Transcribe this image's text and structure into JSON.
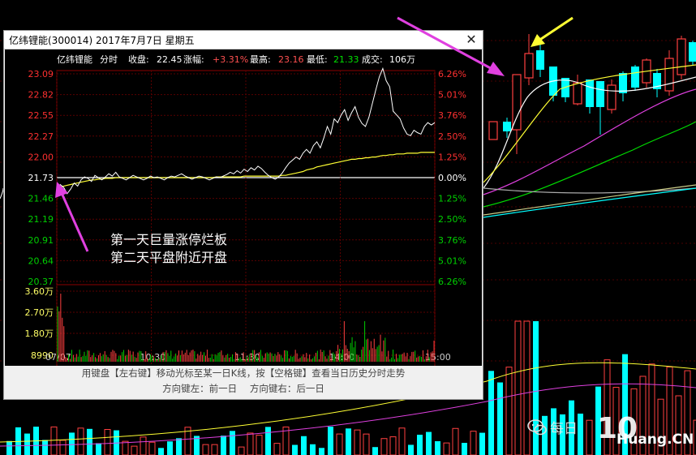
{
  "popup": {
    "title": "亿纬锂能(300014) 2017年7月7日 星期五",
    "close_label": "✕"
  },
  "intraday": {
    "name": "亿纬锂能",
    "mode": "分时",
    "close_label": "收盘:",
    "close_value": "22.45",
    "change_label": "涨幅:",
    "change_value": "+3.31%",
    "high_label": "最高:",
    "high_value": "23.16",
    "low_label": "最低:",
    "low_value": "21.33",
    "volume_label": "成交:",
    "volume_value": "106万"
  },
  "chart_data": {
    "type": "line",
    "price_ticks": [
      "23.09",
      "22.82",
      "22.55",
      "22.27",
      "22.00",
      "21.73",
      "21.46",
      "21.19",
      "20.91",
      "20.64",
      "20.37"
    ],
    "pct_ticks": [
      "6.26%",
      "5.01%",
      "3.76%",
      "2.50%",
      "1.25%",
      "0.00%",
      "1.25%",
      "2.50%",
      "3.76%",
      "5.01%",
      "6.26%"
    ],
    "volume_ticks": [
      "3.60万",
      "2.70万",
      "1.80万",
      "8990"
    ],
    "time_ticks": [
      "07/07",
      "10:30",
      "11:30",
      "14:00",
      "15:00"
    ],
    "ylim": [
      20.37,
      23.09
    ],
    "prev_close": 21.73,
    "price": [
      21.55,
      21.64,
      21.6,
      21.52,
      21.58,
      21.66,
      21.62,
      21.7,
      21.74,
      21.72,
      21.68,
      21.76,
      21.73,
      21.7,
      21.74,
      21.78,
      21.75,
      21.8,
      21.74,
      21.72,
      21.7,
      21.73,
      21.76,
      21.74,
      21.72,
      21.7,
      21.72,
      21.75,
      21.73,
      21.74,
      21.72,
      21.7,
      21.73,
      21.75,
      21.74,
      21.76,
      21.78,
      21.75,
      21.73,
      21.71,
      21.73,
      21.75,
      21.74,
      21.72,
      21.7,
      21.72,
      21.74,
      21.73,
      21.75,
      21.77,
      21.8,
      21.78,
      21.82,
      21.79,
      21.84,
      21.81,
      21.86,
      21.83,
      21.88,
      21.85,
      21.8,
      21.76,
      21.73,
      21.71,
      21.74,
      21.79,
      21.86,
      21.92,
      21.96,
      22.0,
      21.97,
      22.05,
      22.1,
      22.05,
      22.15,
      22.2,
      22.12,
      22.25,
      22.4,
      22.3,
      22.5,
      22.45,
      22.55,
      22.62,
      22.48,
      22.58,
      22.66,
      22.52,
      22.44,
      22.4,
      22.52,
      22.7,
      22.88,
      23.05,
      23.16,
      23.0,
      22.92,
      22.6,
      22.55,
      22.5,
      22.38,
      22.3,
      22.28,
      22.35,
      22.32,
      22.3,
      22.4,
      22.45,
      22.42,
      22.45
    ],
    "avg": [
      21.6,
      21.61,
      21.62,
      21.63,
      21.64,
      21.65,
      21.66,
      21.67,
      21.68,
      21.69,
      21.7,
      21.7,
      21.71,
      21.71,
      21.72,
      21.72,
      21.72,
      21.73,
      21.73,
      21.73,
      21.73,
      21.73,
      21.73,
      21.73,
      21.73,
      21.73,
      21.73,
      21.73,
      21.73,
      21.73,
      21.73,
      21.73,
      21.73,
      21.73,
      21.73,
      21.73,
      21.73,
      21.73,
      21.73,
      21.73,
      21.73,
      21.73,
      21.73,
      21.73,
      21.73,
      21.73,
      21.74,
      21.74,
      21.74,
      21.74,
      21.74,
      21.74,
      21.74,
      21.74,
      21.75,
      21.75,
      21.75,
      21.75,
      21.75,
      21.75,
      21.75,
      21.75,
      21.75,
      21.75,
      21.75,
      21.76,
      21.76,
      21.77,
      21.78,
      21.79,
      21.8,
      21.81,
      21.83,
      21.84,
      21.85,
      21.87,
      21.88,
      21.89,
      21.9,
      21.91,
      21.92,
      21.93,
      21.94,
      21.95,
      21.96,
      21.97,
      21.97,
      21.98,
      21.98,
      21.99,
      21.99,
      22.0,
      22.0,
      22.01,
      22.02,
      22.02,
      22.03,
      22.03,
      22.04,
      22.04,
      22.04,
      22.05,
      22.05,
      22.05,
      22.05,
      22.06,
      22.06,
      22.06,
      22.06,
      22.06
    ]
  },
  "annotation": {
    "line1": "第一天巨量涨停烂板",
    "line2": "第二天平盘附近开盘"
  },
  "hints": {
    "line1": "用键盘【左右键】移动光标至某一日K线，按【空格键】查看当日历史分时走势",
    "left": "方向键左：前一日",
    "right": "方向键右：后一日"
  },
  "watermark": {
    "text": "每日",
    "num": "10",
    "site": "Huang.CN"
  },
  "colors": {
    "up": "#ff4040",
    "down": "#00ffff",
    "avg": "#ffff33",
    "price": "#ffffff",
    "annot_arrow": "#e040e0",
    "yellow_arrow": "#ffff33",
    "axis_red": "#ff3030",
    "axis_green": "#00d000"
  }
}
